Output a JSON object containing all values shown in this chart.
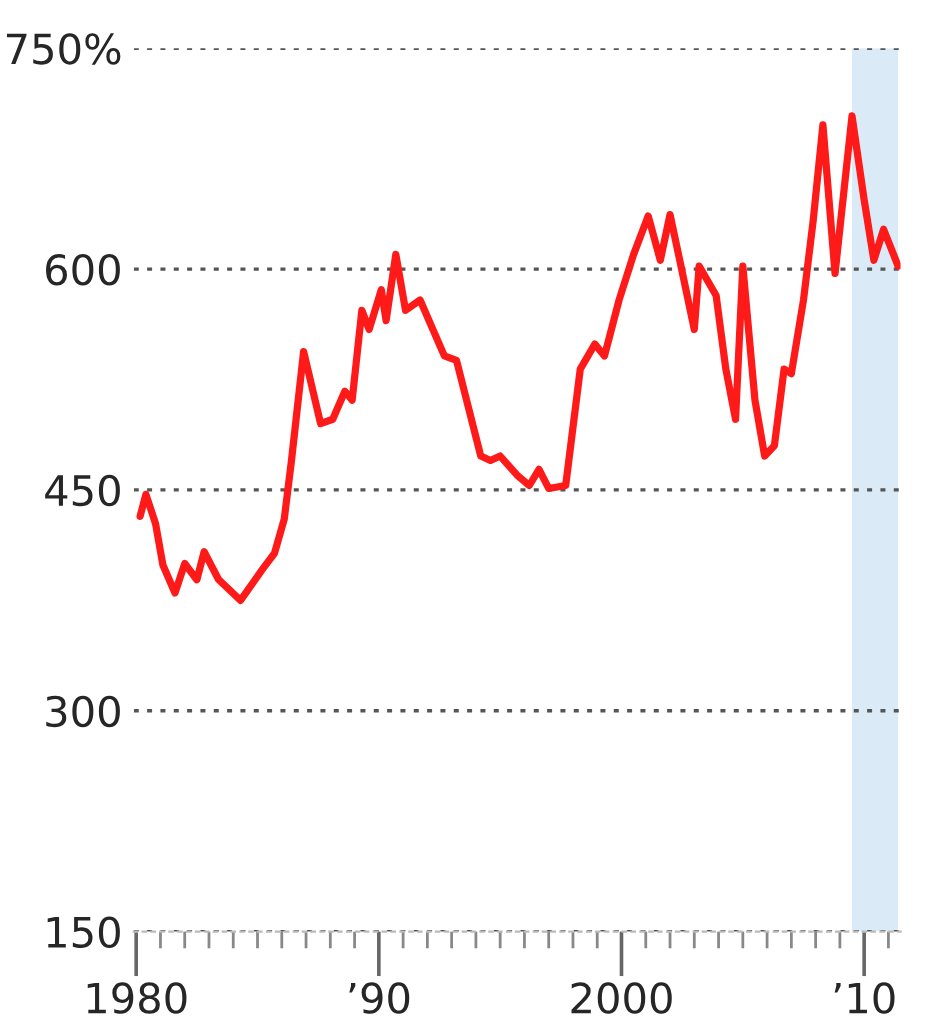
{
  "chart_data": {
    "type": "line",
    "x": [
      1980.16,
      1980.4,
      1980.8,
      1981.1,
      1981.6,
      1982.0,
      1982.5,
      1982.8,
      1983.4,
      1984.3,
      1985.2,
      1985.7,
      1986.1,
      1986.4,
      1986.9,
      1987.6,
      1988.1,
      1988.6,
      1988.9,
      1989.3,
      1989.6,
      1990.1,
      1990.3,
      1990.7,
      1991.1,
      1991.7,
      1992.7,
      1993.2,
      1994.2,
      1994.6,
      1995.0,
      1995.7,
      1996.2,
      1996.6,
      1997.0,
      1997.7,
      1998.3,
      1998.9,
      1999.3,
      1999.9,
      2000.5,
      2001.1,
      2001.6,
      2002.0,
      2002.4,
      2003.0,
      2003.2,
      2003.9,
      2004.3,
      2004.7,
      2005.0,
      2005.5,
      2005.9,
      2006.3,
      2006.7,
      2007.0,
      2007.5,
      2007.9,
      2008.3,
      2008.8,
      2009.5,
      2010.0,
      2010.4,
      2010.8,
      2011.4
    ],
    "series": [
      {
        "color": "#ff1a1a",
        "values": [
          432,
          447,
          427,
          399,
          380,
          400,
          389,
          408,
          389,
          375,
          396,
          407,
          430,
          470,
          544,
          495,
          498,
          517,
          511,
          572,
          559,
          586,
          565,
          610,
          572,
          579,
          541,
          538,
          473,
          470,
          473,
          460,
          453,
          464,
          451,
          453,
          532,
          549,
          541,
          579,
          610,
          636,
          606,
          637,
          606,
          559,
          602,
          582,
          532,
          498,
          602,
          511,
          473,
          480,
          532,
          529,
          579,
          633,
          698,
          597,
          704,
          647,
          606,
          627,
          602
        ]
      }
    ],
    "xlim": [
      1979.9,
      2011.5
    ],
    "xticks": [
      {
        "value": 1980,
        "label": "1980"
      },
      {
        "value": 1981,
        "label": null
      },
      {
        "value": 1982,
        "label": null
      },
      {
        "value": 1983,
        "label": null
      },
      {
        "value": 1984,
        "label": null
      },
      {
        "value": 1985,
        "label": null
      },
      {
        "value": 1986,
        "label": null
      },
      {
        "value": 1987,
        "label": null
      },
      {
        "value": 1988,
        "label": null
      },
      {
        "value": 1989,
        "label": null
      },
      {
        "value": 1990,
        "label": "’90"
      },
      {
        "value": 1991,
        "label": null
      },
      {
        "value": 1992,
        "label": null
      },
      {
        "value": 1993,
        "label": null
      },
      {
        "value": 1994,
        "label": null
      },
      {
        "value": 1995,
        "label": null
      },
      {
        "value": 1996,
        "label": null
      },
      {
        "value": 1997,
        "label": null
      },
      {
        "value": 1998,
        "label": null
      },
      {
        "value": 1999,
        "label": null
      },
      {
        "value": 2000,
        "label": "2000"
      },
      {
        "value": 2001,
        "label": null
      },
      {
        "value": 2002,
        "label": null
      },
      {
        "value": 2003,
        "label": null
      },
      {
        "value": 2004,
        "label": null
      },
      {
        "value": 2005,
        "label": null
      },
      {
        "value": 2006,
        "label": null
      },
      {
        "value": 2007,
        "label": null
      },
      {
        "value": 2008,
        "label": null
      },
      {
        "value": 2009,
        "label": null
      },
      {
        "value": 2010,
        "label": "’10"
      },
      {
        "value": 2011,
        "label": null
      }
    ],
    "ylim": [
      150,
      750
    ],
    "yticks": [
      150,
      300,
      450,
      600,
      {
        "value": 750,
        "label": "750%"
      }
    ],
    "grid": "y",
    "bands": [
      {
        "axis": "x",
        "from": 2009.5,
        "to": 2011.4,
        "color": "#dbeaf7"
      }
    ]
  }
}
